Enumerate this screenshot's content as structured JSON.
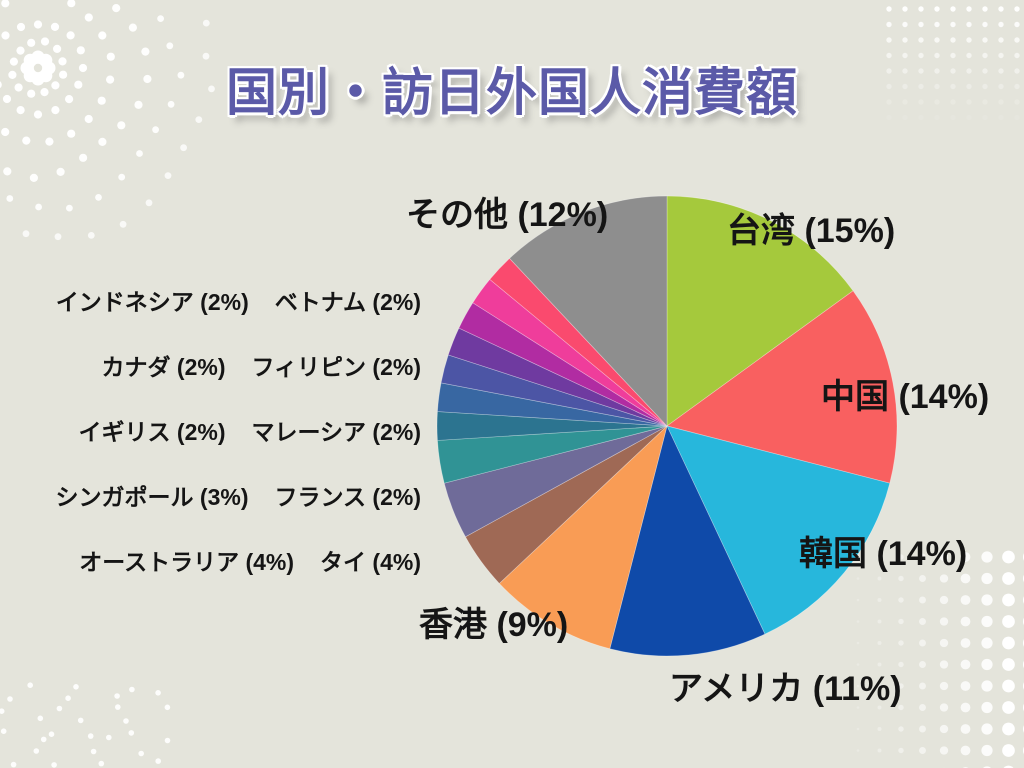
{
  "page": {
    "background": "#E4E4DB",
    "decor_dot_color": "#FFFFFF"
  },
  "title": {
    "text": "国別・訪日外国人消費額",
    "color": "#5B5AA8"
  },
  "chart_data": {
    "type": "pie",
    "title": "国別・訪日外国人消費額",
    "unit": "percent",
    "start_angle_deg": 0,
    "direction": "clockwise",
    "legend_position": "around-pie",
    "series": [
      {
        "name": "台湾",
        "value": 15,
        "color": "#A5C93C"
      },
      {
        "name": "中国",
        "value": 14,
        "color": "#F96060"
      },
      {
        "name": "韓国",
        "value": 14,
        "color": "#27B7DC"
      },
      {
        "name": "アメリカ",
        "value": 11,
        "color": "#0F4AA9"
      },
      {
        "name": "香港",
        "value": 9,
        "color": "#F99C55"
      },
      {
        "name": "オーストラリア",
        "value": 4,
        "color": "#9F6955"
      },
      {
        "name": "タイ",
        "value": 4,
        "color": "#6F6B99"
      },
      {
        "name": "シンガポール",
        "value": 3,
        "color": "#309395"
      },
      {
        "name": "フランス",
        "value": 2,
        "color": "#2C7490"
      },
      {
        "name": "イギリス",
        "value": 2,
        "color": "#3867A2"
      },
      {
        "name": "マレーシア",
        "value": 2,
        "color": "#4C55A5"
      },
      {
        "name": "カナダ",
        "value": 2,
        "color": "#6F3AA0"
      },
      {
        "name": "フィリピン",
        "value": 2,
        "color": "#B12CA2"
      },
      {
        "name": "インドネシア",
        "value": 2,
        "color": "#EF3D9B"
      },
      {
        "name": "ベトナム",
        "value": 2,
        "color": "#FA4A6E"
      },
      {
        "name": "その他",
        "value": 12,
        "color": "#8E8E8E"
      }
    ]
  },
  "callouts": {
    "taiwan": "台湾 (15%)",
    "china": "中国 (14%)",
    "korea": "韓国 (14%)",
    "usa": "アメリカ (11%)",
    "hongkong": "香港 (9%)",
    "others": "その他 (12%)"
  },
  "side_list": {
    "rows": [
      {
        "left": "インドネシア (2%)",
        "right": "ベトナム (2%)"
      },
      {
        "left": "カナダ (2%)",
        "right": "フィリピン (2%)"
      },
      {
        "left": "イギリス (2%)",
        "right": "マレーシア (2%)"
      },
      {
        "left": "シンガポール (3%)",
        "right": "フランス (2%)"
      },
      {
        "left": "オーストラリア (4%)",
        "right": "タイ (4%)"
      }
    ]
  }
}
